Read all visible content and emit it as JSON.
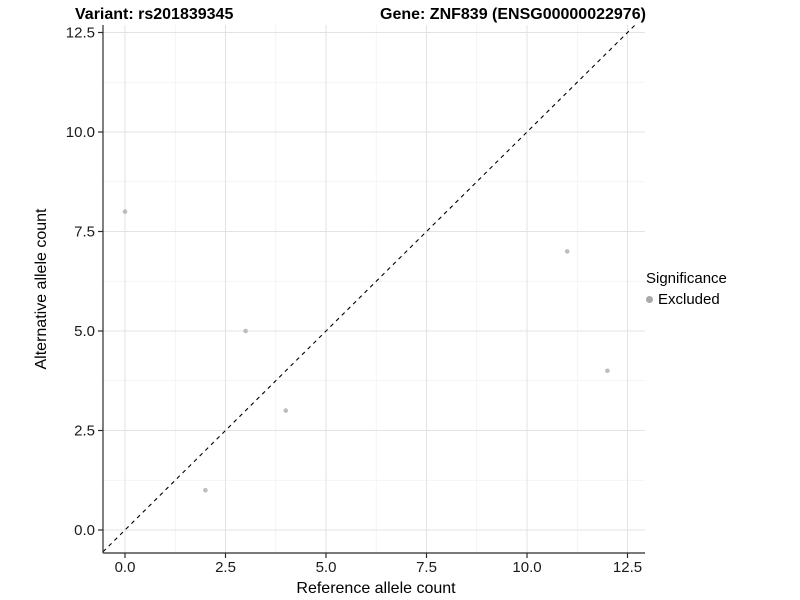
{
  "chart_data": {
    "type": "scatter",
    "title_left": "Variant: rs201839345",
    "title_right": "Gene: ZNF839 (ENSG00000022976)",
    "xlabel": "Reference allele count",
    "ylabel": "Alternative allele count",
    "xlim": [
      0,
      12.5
    ],
    "ylim": [
      0,
      12.5
    ],
    "x_ticks": {
      "values": [
        0,
        2.5,
        5,
        7.5,
        10,
        12.5
      ],
      "labels": [
        "0.0",
        "2.5",
        "5.0",
        "7.5",
        "10.0",
        "12.5"
      ]
    },
    "y_ticks": {
      "values": [
        0,
        2.5,
        5,
        7.5,
        10,
        12.5
      ],
      "labels": [
        "0.0",
        "2.5",
        "5.0",
        "7.5",
        "10.0",
        "12.5"
      ]
    },
    "grid": {
      "on": true,
      "major_color": "#e3e3e3",
      "minor_color": "#f1f1f1"
    },
    "axis_color": "#2b2b2b",
    "reference_line": {
      "slope": 1,
      "intercept": 0,
      "style": "dashed",
      "color": "#000000"
    },
    "series": [
      {
        "name": "Excluded",
        "color": "#bdbdbd",
        "points": [
          [
            0,
            8
          ],
          [
            2,
            1
          ],
          [
            3,
            5
          ],
          [
            4,
            3
          ],
          [
            11,
            7
          ],
          [
            12,
            4
          ]
        ]
      }
    ],
    "legend": {
      "title": "Significance",
      "position": "right",
      "items": [
        {
          "label": "Excluded",
          "color": "#a9a9a9"
        }
      ]
    }
  }
}
